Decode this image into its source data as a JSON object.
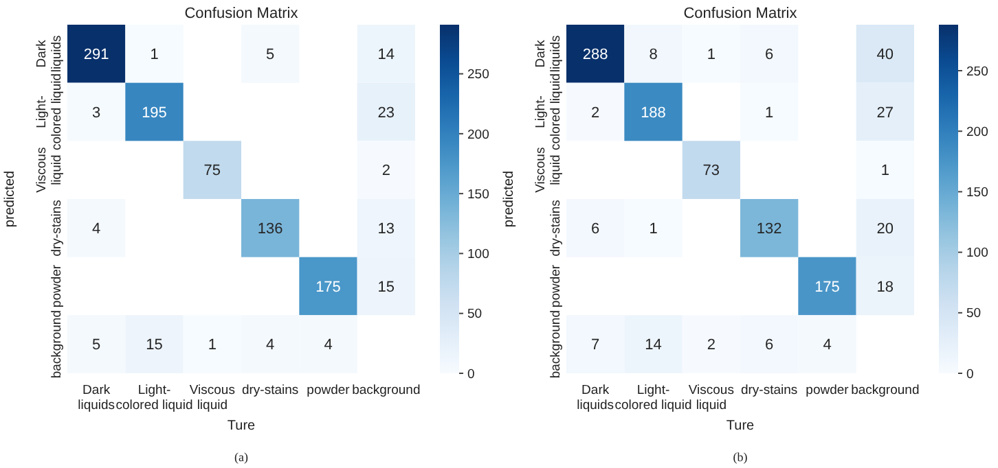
{
  "chart_data": [
    {
      "type": "heatmap",
      "title": "Confusion Matrix",
      "xlabel": "Ture",
      "ylabel": "predicted",
      "annotations": [
        "(a)"
      ],
      "categories": [
        "Dark liquids",
        "Light-colored liquid",
        "Viscous liquid",
        "dry-stains",
        "powder",
        "background"
      ],
      "y_categories": [
        "Dark liquids",
        "Light-colored liquid",
        "Viscous liquid",
        "dry-stains",
        "powder",
        "background"
      ],
      "cells": [
        [
          291,
          1,
          null,
          5,
          null,
          14
        ],
        [
          3,
          195,
          null,
          null,
          null,
          23
        ],
        [
          null,
          null,
          75,
          null,
          null,
          2
        ],
        [
          4,
          null,
          null,
          136,
          null,
          13
        ],
        [
          null,
          null,
          null,
          null,
          175,
          15
        ],
        [
          5,
          15,
          1,
          4,
          4,
          null
        ]
      ],
      "clim": [
        0,
        291
      ],
      "cticks": [
        0,
        50,
        100,
        150,
        200,
        250
      ],
      "data_labels": true
    },
    {
      "type": "heatmap",
      "title": "Confusion Matrix",
      "xlabel": "Ture",
      "ylabel": "predicted",
      "annotations": [
        "(b)"
      ],
      "categories": [
        "Dark liquids",
        "Light-colored liquid",
        "Viscous liquid",
        "dry-stains",
        "powder",
        "background"
      ],
      "y_categories": [
        "Dark liquids",
        "Light-colored liquid",
        "Viscous liquid",
        "dry-stains",
        "powder",
        "background"
      ],
      "cells": [
        [
          288,
          8,
          1,
          6,
          null,
          40
        ],
        [
          2,
          188,
          null,
          1,
          null,
          27
        ],
        [
          null,
          null,
          73,
          null,
          null,
          1
        ],
        [
          6,
          1,
          null,
          132,
          null,
          20
        ],
        [
          null,
          null,
          null,
          null,
          175,
          18
        ],
        [
          7,
          14,
          2,
          6,
          4,
          null
        ]
      ],
      "clim": [
        0,
        288
      ],
      "cticks": [
        0,
        50,
        100,
        150,
        200,
        250
      ],
      "data_labels": true
    }
  ]
}
